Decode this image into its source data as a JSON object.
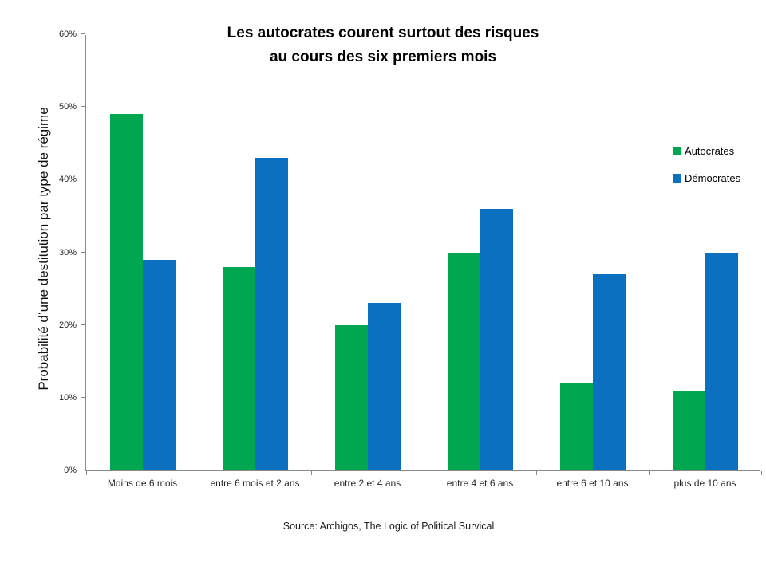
{
  "chart_data": {
    "type": "bar",
    "title_lines": [
      "Les autocrates courent surtout des risques",
      "au cours des six premiers mois"
    ],
    "ylabel": "Probabilité d’une destitution par type de régime",
    "categories": [
      "Moins de 6 mois",
      "entre 6 mois et 2 ans",
      "entre 2 et 4 ans",
      "entre 4 et 6 ans",
      "entre 6 et 10 ans",
      "plus de 10 ans"
    ],
    "series": [
      {
        "name": "Autocrates",
        "color": "#00A650",
        "values": [
          49,
          28,
          20,
          30,
          12,
          11
        ]
      },
      {
        "name": "Démocrates",
        "color": "#0B70C0",
        "values": [
          29,
          43,
          23,
          36,
          27,
          30
        ]
      }
    ],
    "ylim": [
      0,
      60
    ],
    "yticks": [
      "0%",
      "10%",
      "20%",
      "30%",
      "40%",
      "50%",
      "60%"
    ],
    "grid": false,
    "legend_position": "right-inside",
    "axis_color": "#8a8a8a",
    "source": "Source: Archigos, The Logic of Political Survical"
  }
}
